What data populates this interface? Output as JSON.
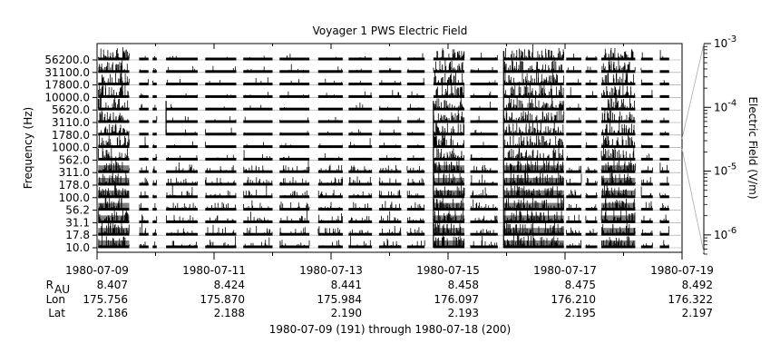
{
  "chart_data": {
    "type": "line",
    "title": "Voyager 1 PWS Electric Field",
    "ylabel": "Frequency (Hz)",
    "colorbar_label": "Electric Field (V/m)",
    "xlabel": "1980-07-09 (191) through 1980-07-18 (200)",
    "channels": [
      "56200.0",
      "31100.0",
      "17800.0",
      "10000.0",
      "5620.0",
      "3110.0",
      "1780.0",
      "1000.0",
      "562.0",
      "311.0",
      "178.0",
      "100.0",
      "56.2",
      "31.1",
      "17.8",
      "10.0"
    ],
    "x_ticks": [
      "1980-07-09",
      "1980-07-11",
      "1980-07-13",
      "1980-07-15",
      "1980-07-17",
      "1980-07-19"
    ],
    "xlim_days": [
      9,
      19
    ],
    "colorbar_ticks": [
      {
        "base": "10",
        "exp": "-3"
      },
      {
        "base": "10",
        "exp": "-4"
      },
      {
        "base": "10",
        "exp": "-5"
      },
      {
        "base": "10",
        "exp": "-6"
      }
    ],
    "colorbar_range": [
      "5e-7",
      "1e-3"
    ],
    "colorbar_scale": "log",
    "ephemeris": {
      "rows": [
        {
          "label": "R",
          "sub": "AU",
          "values": [
            "8.407",
            "8.424",
            "8.441",
            "8.458",
            "8.475",
            "8.492"
          ]
        },
        {
          "label": "Lon",
          "sub": "",
          "values": [
            "175.756",
            "175.870",
            "175.984",
            "176.097",
            "176.210",
            "176.322"
          ]
        },
        {
          "label": "Lat",
          "sub": "",
          "values": [
            "2.186",
            "2.188",
            "2.190",
            "2.193",
            "2.195",
            "2.197"
          ]
        }
      ]
    },
    "data_segments_days": [
      [
        9.02,
        9.55
      ],
      [
        9.72,
        9.88
      ],
      [
        9.95,
        10.02
      ],
      [
        10.18,
        10.72
      ],
      [
        10.85,
        11.38
      ],
      [
        11.5,
        12.0
      ],
      [
        12.12,
        12.63
      ],
      [
        12.78,
        13.2
      ],
      [
        13.3,
        13.7
      ],
      [
        13.82,
        14.2
      ],
      [
        14.3,
        14.6
      ],
      [
        14.75,
        15.28
      ],
      [
        15.38,
        15.85
      ],
      [
        15.95,
        16.98
      ],
      [
        17.02,
        17.28
      ],
      [
        17.35,
        17.55
      ],
      [
        17.62,
        18.2
      ],
      [
        18.3,
        18.5
      ],
      [
        18.62,
        18.78
      ]
    ],
    "high_activity_segments_days": [
      [
        9.02,
        9.55
      ],
      [
        14.75,
        15.28
      ],
      [
        15.95,
        16.98
      ],
      [
        17.62,
        18.2
      ]
    ],
    "colors": {
      "trace": "#000000",
      "fill": "#7f7f7f",
      "grid": "#999999"
    }
  }
}
